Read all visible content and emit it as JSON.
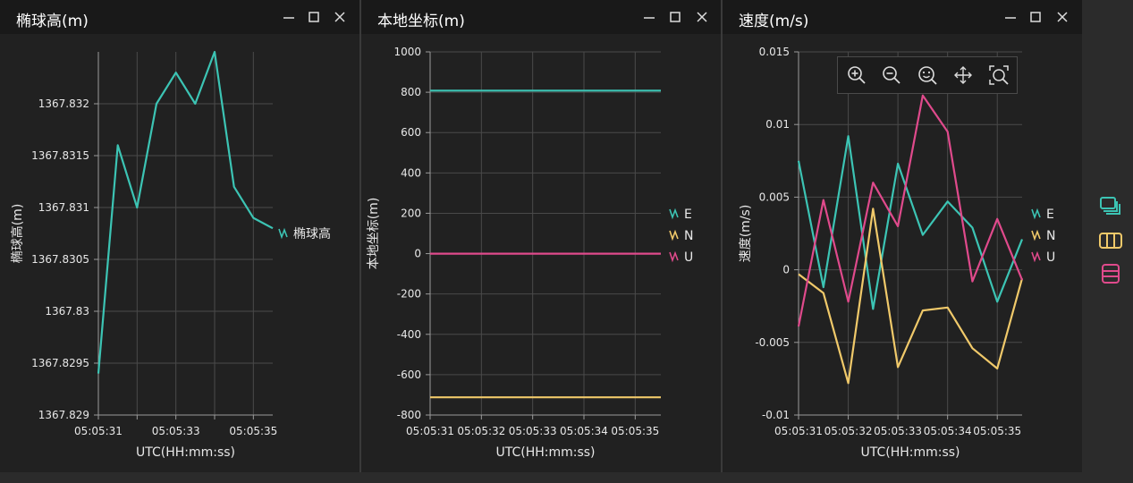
{
  "panels": [
    {
      "title": "椭球高(m)",
      "window_controls": [
        "minimize-icon",
        "maximize-icon",
        "close-icon"
      ]
    },
    {
      "title": "本地坐标(m)",
      "window_controls": [
        "minimize-icon",
        "maximize-icon",
        "close-icon"
      ]
    },
    {
      "title": "速度(m/s)",
      "window_controls": [
        "minimize-icon",
        "maximize-icon",
        "close-icon"
      ]
    }
  ],
  "toolbar": {
    "icons": [
      "zoom-in-icon",
      "zoom-out-icon",
      "zoom-reset-icon",
      "pan-icon",
      "zoom-box-icon"
    ]
  },
  "side_icons": [
    "layers-icon",
    "layout-horizontal-icon",
    "layout-vertical-icon"
  ],
  "colors": {
    "teal": "#3cc4b4",
    "yellow": "#f0c96a",
    "pink": "#e04a8c",
    "grid": "#4a4a4a",
    "axis": "#9a9a9a"
  },
  "chart_data": [
    {
      "type": "line",
      "title": "",
      "xlabel": "UTC(HH:mm:ss)",
      "ylabel": "椭球高(m)",
      "x_ticks": [
        "05:05:31",
        "05:05:33",
        "05:05:35"
      ],
      "y_ticks": [
        "1367.829",
        "1367.8295",
        "1367.83",
        "1367.8305",
        "1367.831",
        "1367.8315",
        "1367.832"
      ],
      "ylim": [
        1367.829,
        1367.8325
      ],
      "xlim": [
        "05:05:31.0",
        "05:05:35.5"
      ],
      "x": [
        "05:05:31.0",
        "05:05:31.5",
        "05:05:32.0",
        "05:05:32.5",
        "05:05:33.0",
        "05:05:33.5",
        "05:05:34.0",
        "05:05:34.5",
        "05:05:35.0",
        "05:05:35.5"
      ],
      "series": [
        {
          "name": "椭球高",
          "color": "#3cc4b4",
          "values": [
            1367.8294,
            1367.8316,
            1367.831,
            1367.832,
            1367.8323,
            1367.832,
            1367.8325,
            1367.8312,
            1367.8309,
            1367.8308
          ]
        }
      ],
      "legend": "right",
      "grid": true
    },
    {
      "type": "line",
      "title": "",
      "xlabel": "UTC(HH:mm:ss)",
      "ylabel": "本地坐标(m)",
      "x_ticks": [
        "05:05:31",
        "05:05:32",
        "05:05:33",
        "05:05:34",
        "05:05:35"
      ],
      "y_ticks": [
        "-800",
        "-600",
        "-400",
        "-200",
        "0",
        "200",
        "400",
        "600",
        "800",
        "1000"
      ],
      "ylim": [
        -800,
        1000
      ],
      "xlim": [
        "05:05:31.0",
        "05:05:35.5"
      ],
      "x": [
        "05:05:31.0",
        "05:05:35.5"
      ],
      "series": [
        {
          "name": "E",
          "color": "#3cc4b4",
          "values": [
            808,
            808
          ]
        },
        {
          "name": "N",
          "color": "#f0c96a",
          "values": [
            -712,
            -712
          ]
        },
        {
          "name": "U",
          "color": "#e04a8c",
          "values": [
            0,
            0
          ]
        }
      ],
      "legend": "right",
      "grid": true
    },
    {
      "type": "line",
      "title": "",
      "xlabel": "UTC(HH:mm:ss)",
      "ylabel": "速度(m/s)",
      "x_ticks": [
        "05:05:31",
        "05:05:32",
        "05:05:33",
        "05:05:34",
        "05:05:35"
      ],
      "y_ticks": [
        "-0.01",
        "-0.005",
        "0",
        "0.005",
        "0.01",
        "0.015"
      ],
      "ylim": [
        -0.01,
        0.015
      ],
      "xlim": [
        "05:05:31.0",
        "05:05:35.5"
      ],
      "x": [
        "05:05:31.0",
        "05:05:31.5",
        "05:05:32.0",
        "05:05:32.5",
        "05:05:33.0",
        "05:05:33.5",
        "05:05:34.0",
        "05:05:34.5",
        "05:05:35.0",
        "05:05:35.5"
      ],
      "series": [
        {
          "name": "E",
          "color": "#3cc4b4",
          "values": [
            0.0075,
            -0.0012,
            0.0092,
            -0.0027,
            0.0073,
            0.0024,
            0.0047,
            0.0029,
            -0.0022,
            0.0021
          ]
        },
        {
          "name": "N",
          "color": "#f0c96a",
          "values": [
            -0.0003,
            -0.0016,
            -0.0078,
            0.0042,
            -0.0067,
            -0.0028,
            -0.0026,
            -0.0054,
            -0.0068,
            -0.0006
          ]
        },
        {
          "name": "U",
          "color": "#e04a8c",
          "values": [
            -0.0039,
            0.0048,
            -0.0022,
            0.006,
            0.003,
            0.012,
            0.0095,
            -0.0008,
            0.0035,
            -0.0007
          ]
        }
      ],
      "legend": "right",
      "grid": true
    }
  ]
}
